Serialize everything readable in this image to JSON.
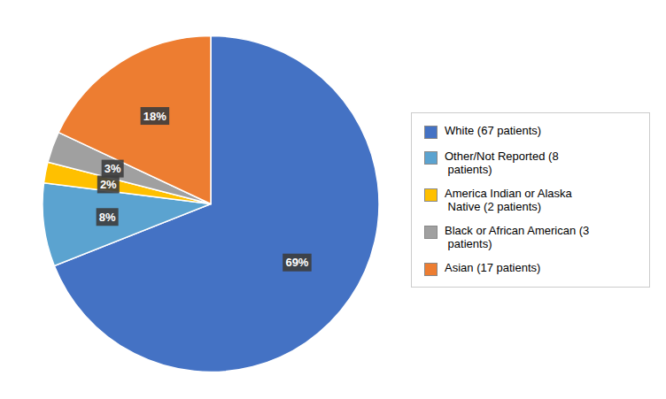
{
  "chart_data": {
    "type": "pie",
    "categories": [
      "White (67 patients)",
      "Other/Not Reported (8\n patients)",
      "America Indian or Alaska\n Native (2 patients)",
      "Black or African American (3\n patients)",
      "Asian (17 patients)"
    ],
    "values": [
      69,
      8,
      2,
      3,
      18
    ],
    "value_labels": [
      "69%",
      "8%",
      "2%",
      "3%",
      "18%"
    ],
    "colors": [
      "#4472C4",
      "#5BA3D0",
      "#FFC000",
      "#A0A0A0",
      "#ED7D31"
    ],
    "data_labels": true,
    "legend": "right"
  }
}
